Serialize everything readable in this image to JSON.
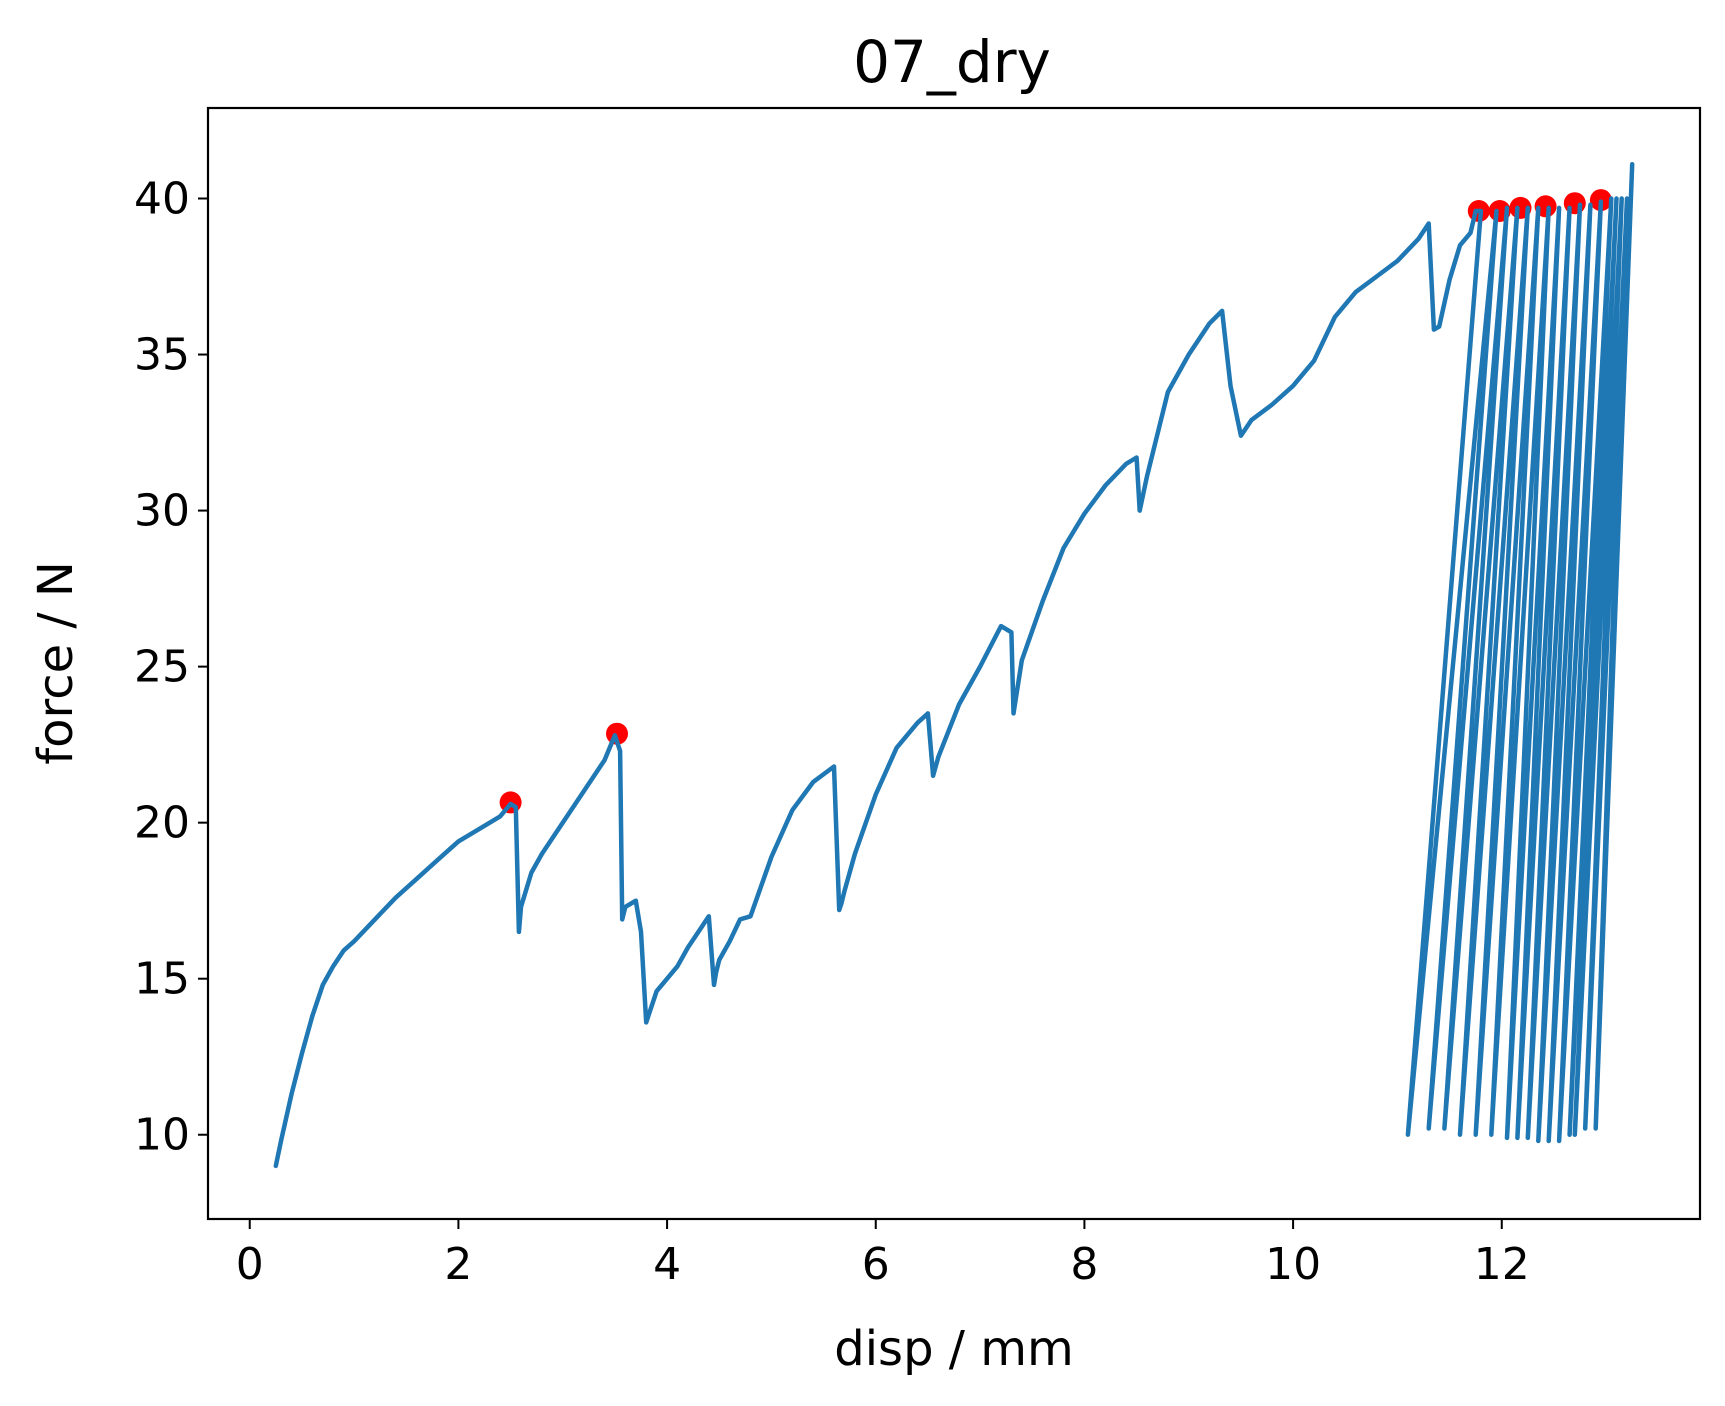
{
  "chart_data": {
    "type": "line",
    "title": "07_dry",
    "xlabel": "disp / mm",
    "ylabel": "force / N",
    "xlim": [
      -0.4,
      13.9
    ],
    "ylim": [
      7.3,
      42.9
    ],
    "xticks": [
      0,
      2,
      4,
      6,
      8,
      10,
      12
    ],
    "yticks": [
      10,
      15,
      20,
      25,
      30,
      35,
      40
    ],
    "grid": false,
    "line_color": "#1f77b4",
    "marker_color": "#ff0000",
    "series": [
      {
        "type": "line",
        "x": [
          0.25,
          0.3,
          0.4,
          0.5,
          0.6,
          0.7,
          0.8,
          0.9,
          1.0,
          1.2,
          1.4,
          1.6,
          1.8,
          2.0,
          2.2,
          2.4,
          2.5,
          2.55,
          2.58,
          2.6,
          2.7,
          2.8,
          3.0,
          3.2,
          3.4,
          3.5,
          3.55,
          3.57,
          3.6,
          3.7,
          3.75,
          3.8,
          3.9,
          4.0,
          4.1,
          4.2,
          4.3,
          4.4,
          4.45,
          4.47,
          4.5,
          4.6,
          4.7,
          4.8,
          5.0,
          5.2,
          5.4,
          5.6,
          5.65,
          5.67,
          5.7,
          5.8,
          6.0,
          6.2,
          6.4,
          6.5,
          6.55,
          6.6,
          6.8,
          7.0,
          7.2,
          7.3,
          7.32,
          7.4,
          7.6,
          7.8,
          8.0,
          8.2,
          8.4,
          8.5,
          8.53,
          8.6,
          8.8,
          9.0,
          9.2,
          9.32,
          9.4,
          9.5,
          9.6,
          9.8,
          10.0,
          10.2,
          10.4,
          10.6,
          10.8,
          11.0,
          11.2,
          11.3,
          11.35,
          11.4,
          11.5,
          11.6,
          11.7,
          11.75,
          11.8,
          11.1,
          11.95,
          11.3,
          12.05,
          11.45,
          12.15,
          11.6,
          12.25,
          11.75,
          12.35,
          11.9,
          12.45,
          12.05,
          12.55,
          12.15,
          12.65,
          12.25,
          12.75,
          12.35,
          12.85,
          12.45,
          12.95,
          12.55,
          13.05,
          12.65,
          13.1,
          12.7,
          13.15,
          12.8,
          13.2,
          12.9,
          13.25
        ],
        "y": [
          9.0,
          9.8,
          11.3,
          12.6,
          13.8,
          14.8,
          15.4,
          15.9,
          16.2,
          16.9,
          17.6,
          18.2,
          18.8,
          19.4,
          19.8,
          20.2,
          20.6,
          20.5,
          16.5,
          17.3,
          18.4,
          19.0,
          20.0,
          21.0,
          22.0,
          22.8,
          22.3,
          16.9,
          17.3,
          17.5,
          16.5,
          13.6,
          14.6,
          15.0,
          15.4,
          16.0,
          16.5,
          17.0,
          14.8,
          15.2,
          15.6,
          16.2,
          16.9,
          17.0,
          18.9,
          20.4,
          21.3,
          21.8,
          17.2,
          17.4,
          17.8,
          19.0,
          20.9,
          22.4,
          23.2,
          23.5,
          21.5,
          22.1,
          23.8,
          25.0,
          26.3,
          26.1,
          23.5,
          25.2,
          27.1,
          28.8,
          29.9,
          30.8,
          31.5,
          31.7,
          30.0,
          31.1,
          33.8,
          35.0,
          36.0,
          36.4,
          34.0,
          32.4,
          32.9,
          33.4,
          34.0,
          34.8,
          36.2,
          37.0,
          37.5,
          38.0,
          38.7,
          39.2,
          35.8,
          35.9,
          37.4,
          38.5,
          38.9,
          39.6,
          39.6,
          10.0,
          39.6,
          10.2,
          39.7,
          10.2,
          39.7,
          10.0,
          39.7,
          10.0,
          39.7,
          10.0,
          39.7,
          9.9,
          39.7,
          9.9,
          39.7,
          9.9,
          39.8,
          9.8,
          39.8,
          9.8,
          39.9,
          9.8,
          40.0,
          10.0,
          40.0,
          10.0,
          40.0,
          10.2,
          40.0,
          10.2,
          41.1
        ]
      },
      {
        "type": "scatter",
        "x": [
          2.5,
          3.52,
          11.78,
          11.98,
          12.18,
          12.42,
          12.7,
          12.95
        ],
        "y": [
          20.65,
          22.85,
          39.6,
          39.6,
          39.7,
          39.75,
          39.85,
          39.95
        ]
      }
    ]
  }
}
